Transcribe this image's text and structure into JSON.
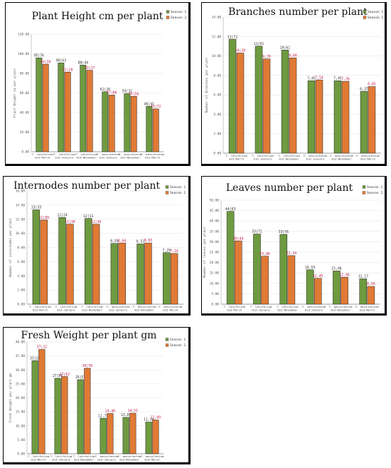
{
  "colors": {
    "s1": "#6e9a40",
    "s2": "#e07a35",
    "s1_label": "#333333",
    "s2_label": "#c0234e"
  },
  "legend": [
    "Season 1",
    "Season 2"
  ],
  "chart_data": [
    {
      "type": "bar",
      "title": "Plant Height cm per plant",
      "ylabel": "Plant Height cm per plant",
      "ylim": [
        0,
        120
      ],
      "ytick_step": 20,
      "categories": [
        [
          "T. latifolium",
          "mid-March"
        ],
        [
          "T. latifolium",
          "mid-January"
        ],
        [
          "T. latifolium",
          "mid-November"
        ],
        [
          "F. aesculentum",
          "mid-January"
        ],
        [
          "F. aesculentum",
          "mid-November"
        ],
        [
          "F. aesculentum",
          "mid-March"
        ]
      ],
      "series": [
        {
          "name": "Season 1",
          "values": [
            95.76,
            90.63,
            88.44,
            61.2,
            59.32,
            46.41
          ],
          "labels": [
            "95|76",
            "90|63",
            "88|44",
            "61|20",
            "59|32",
            "46|41"
          ]
        },
        {
          "name": "Season 2",
          "values": [
            89.39,
            81.28,
            83.17,
            57.86,
            56.56,
            43.72
          ],
          "labels": [
            "89|39",
            "81|28",
            "83|17",
            "57|86",
            "56|56",
            "43|72"
          ]
        }
      ]
    },
    {
      "type": "bar",
      "title": "Branches number per plant",
      "ylabel": "Number of Branches per plant",
      "ylim": [
        0,
        14
      ],
      "ytick_step": 2,
      "categories": [
        [
          "T. latifolium",
          "mid-March"
        ],
        [
          "T. latifolium",
          "mid-January"
        ],
        [
          "T. latifolium",
          "mid-November"
        ],
        [
          "F. aesculentum",
          "mid-January"
        ],
        [
          "F. aesculentum",
          "mid-November"
        ],
        [
          "F. aesculentum",
          "mid-March"
        ]
      ],
      "series": [
        {
          "name": "Season 1",
          "values": [
            11.72,
            11.01,
            10.61,
            7.45,
            7.45,
            6.37
          ],
          "labels": [
            "11|72",
            "11|01",
            "10|61",
            "7,45",
            "7,45",
            "6,37"
          ]
        },
        {
          "name": "Season 2",
          "values": [
            10.3,
            9.7,
            9.8,
            7.54,
            7.39,
            6.85
          ],
          "labels": [
            "10|30",
            "9,70",
            "9,80",
            "7,54",
            "7,39",
            "6,85"
          ]
        }
      ]
    },
    {
      "type": "bar",
      "title": "Internodes number per plant",
      "ylabel": "Number of internodes per plant",
      "ylim": [
        0,
        16
      ],
      "ytick_step": 2,
      "categories": [
        [
          "T. latifolium",
          "mid-March"
        ],
        [
          "T. latifolium",
          "mid-January"
        ],
        [
          "T. latifolium",
          "mid-November"
        ],
        [
          "F. aesculentum",
          "mid-January"
        ],
        [
          "F. aesculentum",
          "mid-November"
        ],
        [
          "F. aesculentum",
          "mid-March"
        ]
      ],
      "series": [
        {
          "name": "Season 1",
          "values": [
            13.33,
            12.24,
            12.11,
            8.59,
            8.51,
            7.29
          ],
          "labels": [
            "13|33",
            "12|24",
            "12|11",
            "8,59",
            "8,51",
            "7,29"
          ]
        },
        {
          "name": "Season 2",
          "values": [
            11.89,
            11.3,
            11.3,
            8.64,
            8.65,
            7.16
          ],
          "labels": [
            "11|89",
            "11|30",
            "11|30",
            "8,64",
            "8,65",
            "7,16"
          ]
        }
      ]
    },
    {
      "type": "bar",
      "title": "Leaves number per plant",
      "ylabel": "Number of leaves per plant",
      "ylim": [
        0,
        50
      ],
      "ytick_step": 5,
      "categories": [
        [
          "T. latifolium",
          "mid-March"
        ],
        [
          "T. latifolium",
          "mid-January"
        ],
        [
          "T. latifolium",
          "mid-November"
        ],
        [
          "F. aesculentum",
          "mid-January"
        ],
        [
          "F. aesculentum",
          "mid-November"
        ],
        [
          "F. aesculentum",
          "mid-March"
        ]
      ],
      "series": [
        {
          "name": "Season 1",
          "values": [
            44.63,
            33.72,
            33.56,
            16.55,
            15.96,
            12.17
          ],
          "labels": [
            "44|63",
            "33|72",
            "33|56",
            "16,55",
            "15,96",
            "12,17"
          ]
        },
        {
          "name": "Season 2",
          "values": [
            30.44,
            23.06,
            23.34,
            12.45,
            12.96,
            8.56
          ],
          "labels": [
            "30|44",
            "23,06",
            "23,34",
            "12,45",
            "12,96",
            "8,56"
          ]
        }
      ]
    },
    {
      "type": "bar",
      "title": "Fresh Weight per plant gm",
      "ylabel": "Fresh Weight per plant gm",
      "ylim": [
        0,
        40
      ],
      "ytick_step": 5,
      "categories": [
        [
          "T. latifolium",
          "mid-March"
        ],
        [
          "T. latifolium",
          "mid-January"
        ],
        [
          "T. latifolium",
          "mid-November"
        ],
        [
          "F. aesculentum",
          "mid-January"
        ],
        [
          "F. aesculentum",
          "mid-November"
        ],
        [
          "F. aesculentum",
          "mid-March"
        ]
      ],
      "series": [
        {
          "name": "Season 1",
          "values": [
            33.28,
            27.0,
            26.51,
            12.71,
            13.01,
            11.34
          ],
          "labels": [
            "33|28",
            "27|00",
            "26|51",
            "12,71",
            "13,01",
            "11,34"
          ]
        },
        {
          "name": "Season 2",
          "values": [
            37.32,
            27.62,
            30.58,
            14.4,
            14.51,
            12.09
          ],
          "labels": [
            "37|32",
            "27|62",
            "30|58",
            "14,40",
            "14,51",
            "12,09"
          ]
        }
      ]
    }
  ]
}
